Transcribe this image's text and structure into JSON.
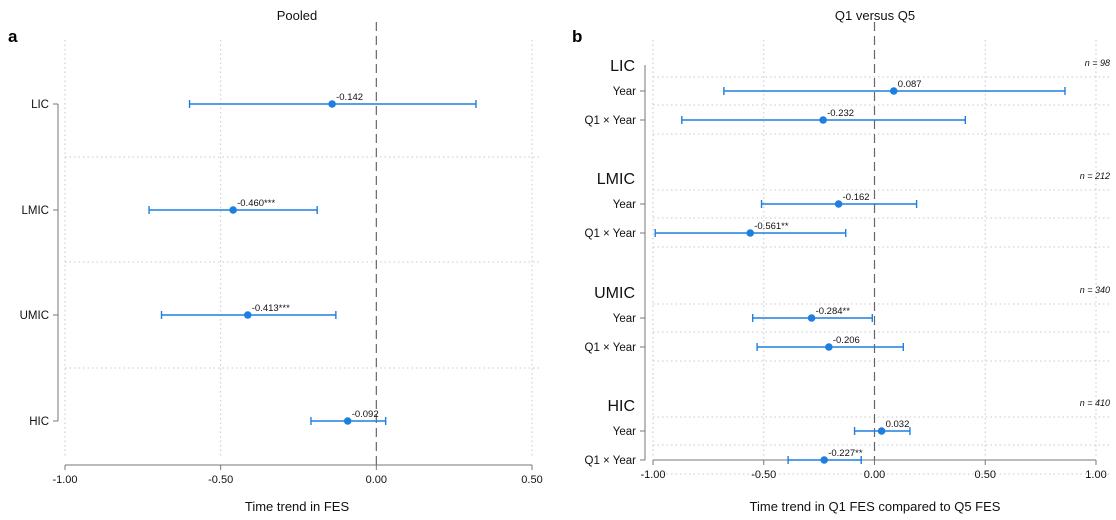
{
  "chart_data": [
    {
      "type": "scatter",
      "panel": "a",
      "title": "Pooled",
      "xlabel": "Time trend in FES",
      "xlim": [
        -1.0,
        0.5
      ],
      "xticks": [
        "-1.00",
        "-0.50",
        "0.00",
        "0.50"
      ],
      "reference_line": 0,
      "grid": true,
      "color": "#1f7fe0",
      "rows": [
        {
          "label": "LIC",
          "estimate": -0.142,
          "lower": -0.6,
          "upper": 0.32,
          "text": "-0.142"
        },
        {
          "label": "LMIC",
          "estimate": -0.46,
          "lower": -0.73,
          "upper": -0.19,
          "text": "-0.460***"
        },
        {
          "label": "UMIC",
          "estimate": -0.413,
          "lower": -0.69,
          "upper": -0.13,
          "text": "-0.413***"
        },
        {
          "label": "HIC",
          "estimate": -0.092,
          "lower": -0.21,
          "upper": 0.03,
          "text": "-0.092"
        }
      ]
    },
    {
      "type": "scatter",
      "panel": "b",
      "title": "Q1 versus Q5",
      "xlabel": "Time trend in Q1 FES compared to Q5 FES",
      "xlim": [
        -1.0,
        1.0
      ],
      "xticks": [
        "-1.00",
        "-0.50",
        "0.00",
        "0.50",
        "1.00"
      ],
      "reference_line": 0,
      "grid": true,
      "color": "#1f7fe0",
      "groups": [
        {
          "label": "LIC",
          "n": "n = 98",
          "rows": [
            {
              "label": "Year",
              "estimate": 0.087,
              "lower": -0.68,
              "upper": 0.86,
              "text": "0.087"
            },
            {
              "label": "Q1 × Year",
              "estimate": -0.232,
              "lower": -0.87,
              "upper": 0.41,
              "text": "-0.232"
            }
          ]
        },
        {
          "label": "LMIC",
          "n": "n = 212",
          "rows": [
            {
              "label": "Year",
              "estimate": -0.162,
              "lower": -0.51,
              "upper": 0.19,
              "text": "-0.162"
            },
            {
              "label": "Q1 × Year",
              "estimate": -0.561,
              "lower": -0.99,
              "upper": -0.13,
              "text": "-0.561**"
            }
          ]
        },
        {
          "label": "UMIC",
          "n": "n = 340",
          "rows": [
            {
              "label": "Year",
              "estimate": -0.284,
              "lower": -0.55,
              "upper": -0.01,
              "text": "-0.284**"
            },
            {
              "label": "Q1 × Year",
              "estimate": -0.206,
              "lower": -0.53,
              "upper": 0.13,
              "text": "-0.206"
            }
          ]
        },
        {
          "label": "HIC",
          "n": "n = 410",
          "rows": [
            {
              "label": "Year",
              "estimate": 0.032,
              "lower": -0.09,
              "upper": 0.16,
              "text": "0.032"
            },
            {
              "label": "Q1 × Year",
              "estimate": -0.227,
              "lower": -0.39,
              "upper": -0.06,
              "text": "-0.227**"
            }
          ]
        }
      ]
    }
  ]
}
